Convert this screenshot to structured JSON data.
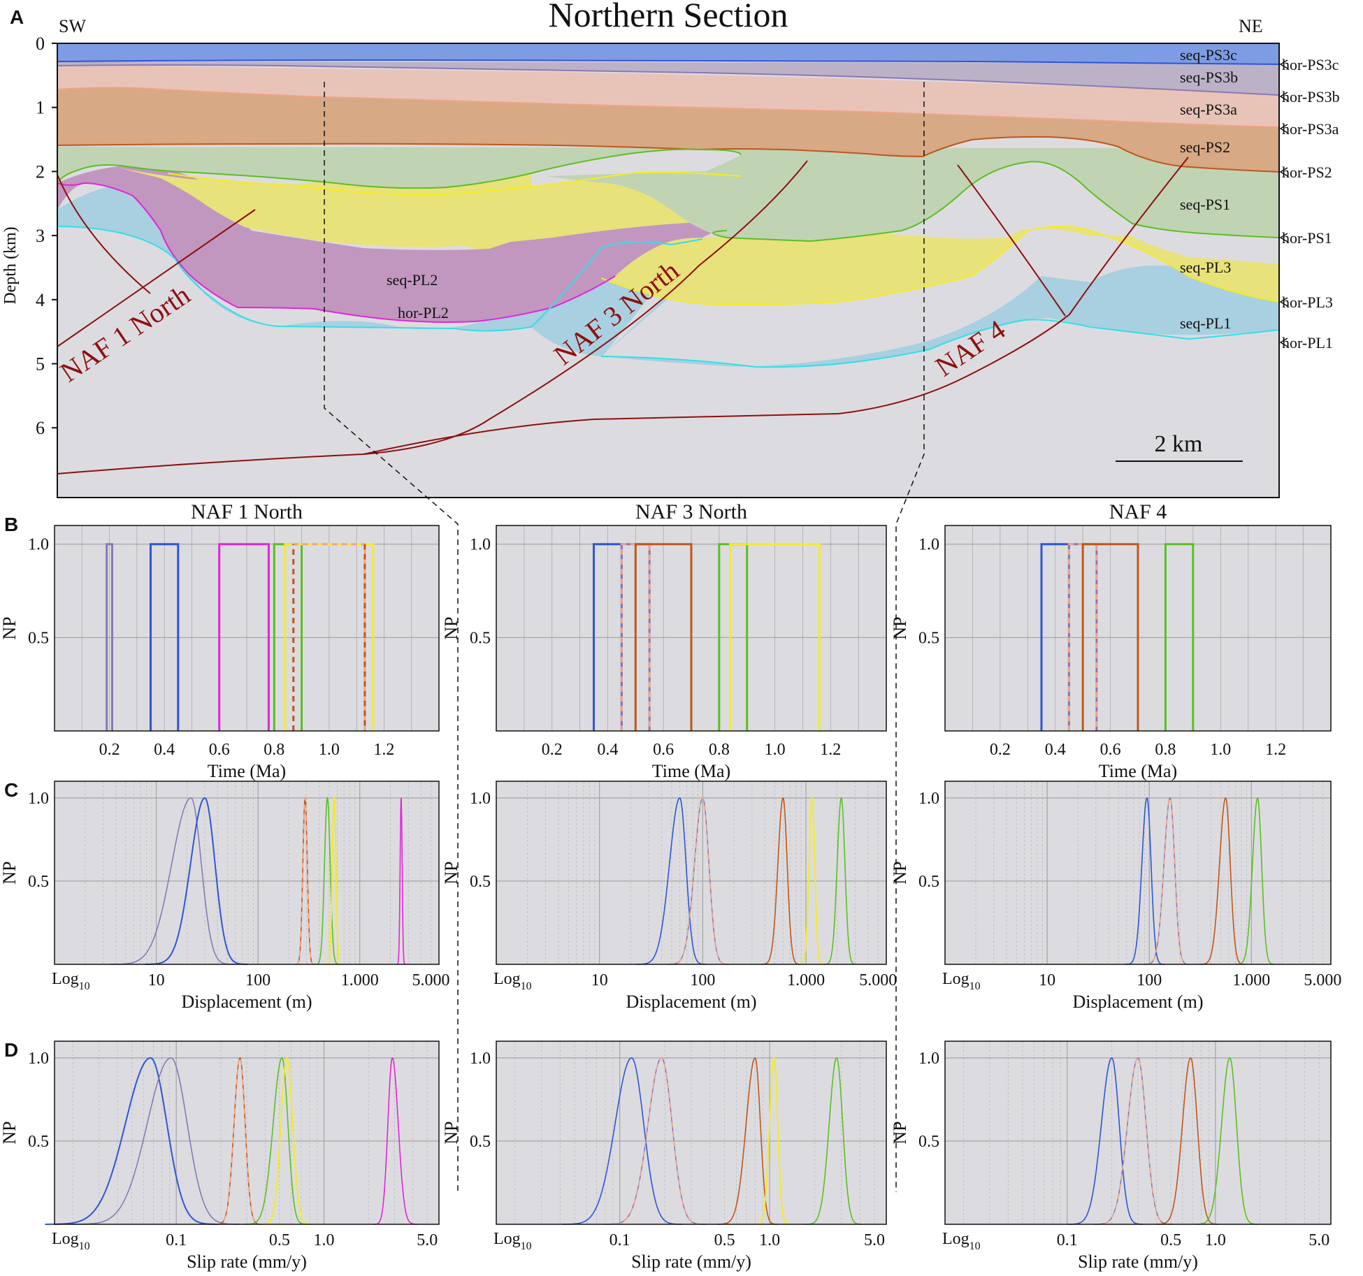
{
  "panel_letters": [
    "A",
    "B",
    "C",
    "D"
  ],
  "section": {
    "title": "Northern Section",
    "left_dir": "SW",
    "right_dir": "NE",
    "ylabel": "Depth (km)",
    "depth_ticks": [
      "0",
      "1",
      "2",
      "3",
      "4",
      "5",
      "6"
    ],
    "scale_label": "2 km",
    "fault_labels": [
      "NAF 1 North",
      "NAF 3 North",
      "NAF 4"
    ],
    "inner_labels": [
      "seq-PL2",
      "hor-PL2"
    ],
    "sequence_labels": [
      "seq-PS3c",
      "seq-PS3b",
      "seq-PS3a",
      "seq-PS2",
      "seq-PS1",
      "seq-PL3",
      "seq-PL1"
    ],
    "horizon_labels": [
      "hor-PS3c",
      "hor-PS3b",
      "hor-PS3a",
      "hor-PS2",
      "hor-PS1",
      "hor-PL3",
      "hor-PL1"
    ]
  },
  "colors": {
    "PS3c": "#2e55d6",
    "PS3b": "#8a78b4",
    "PS3a": "#f0a487",
    "PS2": "#c0561a",
    "PS1": "#5bbf1f",
    "PL3": "#f4ec22",
    "PL2": "#e424d8",
    "PL1": "#2fe0e8",
    "fault": "#8e0f0f",
    "panel_bg": "#dcdce0"
  },
  "chart_data": [
    {
      "type": "line",
      "panel": "B",
      "title": "NAF 1 North",
      "xlabel": "Time (Ma)",
      "ylabel": "NP",
      "xlim": [
        0,
        1.4
      ],
      "ylim": [
        0,
        1.1
      ],
      "x_ticks": [
        "0.2",
        "0.4",
        "0.6",
        "0.8",
        "1.0",
        "1.2"
      ],
      "y_ticks": [
        "0.5",
        "1.0"
      ],
      "series": [
        {
          "name": "PS3b",
          "color": "#8a78b4",
          "window": [
            0.19,
            0.21
          ]
        },
        {
          "name": "PS3c",
          "color": "#2e55d6",
          "window": [
            0.35,
            0.45
          ]
        },
        {
          "name": "PL2",
          "color": "#e424d8",
          "window": [
            0.6,
            0.78
          ]
        },
        {
          "name": "PS1",
          "color": "#5bbf1f",
          "window": [
            0.8,
            0.9
          ]
        },
        {
          "name": "PL3",
          "color": "#f4ec22",
          "window": [
            0.84,
            1.16
          ]
        },
        {
          "name": "PS3a",
          "color": "#f0a487",
          "window": [
            0.87,
            1.13
          ],
          "dashed": true
        },
        {
          "name": "PS2",
          "color": "#c0561a",
          "window": [
            0.87,
            1.13
          ],
          "dashed": true,
          "verticals_only": true
        }
      ]
    },
    {
      "type": "line",
      "panel": "B",
      "title": "NAF 3 North",
      "xlabel": "Time (Ma)",
      "ylabel": "NP",
      "xlim": [
        0,
        1.4
      ],
      "ylim": [
        0,
        1.1
      ],
      "x_ticks": [
        "0.2",
        "0.4",
        "0.6",
        "0.8",
        "1.0",
        "1.2"
      ],
      "y_ticks": [
        "0.5",
        "1.0"
      ],
      "series": [
        {
          "name": "PS3c",
          "color": "#2e55d6",
          "window": [
            0.35,
            0.45
          ]
        },
        {
          "name": "PS3b",
          "color": "#8a78b4",
          "window": [
            0.45,
            0.55
          ]
        },
        {
          "name": "PS3a",
          "color": "#f0a487",
          "window": [
            0.45,
            0.55
          ],
          "dashed": true
        },
        {
          "name": "PS2",
          "color": "#c0561a",
          "window": [
            0.5,
            0.7
          ]
        },
        {
          "name": "PS1",
          "color": "#5bbf1f",
          "window": [
            0.8,
            0.9
          ]
        },
        {
          "name": "PL3",
          "color": "#f4ec22",
          "window": [
            0.84,
            1.16
          ]
        }
      ]
    },
    {
      "type": "line",
      "panel": "B",
      "title": "NAF 4",
      "xlabel": "Time (Ma)",
      "ylabel": "NP",
      "xlim": [
        0,
        1.4
      ],
      "ylim": [
        0,
        1.1
      ],
      "x_ticks": [
        "0.2",
        "0.4",
        "0.6",
        "0.8",
        "1.0",
        "1.2"
      ],
      "y_ticks": [
        "0.5",
        "1.0"
      ],
      "series": [
        {
          "name": "PS3c",
          "color": "#2e55d6",
          "window": [
            0.35,
            0.45
          ]
        },
        {
          "name": "PS3b",
          "color": "#8a78b4",
          "window": [
            0.45,
            0.55
          ]
        },
        {
          "name": "PS3a",
          "color": "#f0a487",
          "window": [
            0.45,
            0.55
          ],
          "dashed": true
        },
        {
          "name": "PS2",
          "color": "#c0561a",
          "window": [
            0.5,
            0.7
          ]
        },
        {
          "name": "PS1",
          "color": "#5bbf1f",
          "window": [
            0.8,
            0.9
          ]
        }
      ]
    },
    {
      "type": "line",
      "panel": "C",
      "xlabel": "Displacement (m)",
      "ylabel": "NP",
      "log_label": "Log",
      "log_sub": "10",
      "xlim": [
        1,
        6000
      ],
      "ylim": [
        0,
        1.1
      ],
      "x_ticks": [
        {
          "v": 10,
          "label": "10"
        },
        {
          "v": 100,
          "label": "100"
        },
        {
          "v": 1000,
          "label": "1.000"
        },
        {
          "v": 5000,
          "label": "5.000"
        }
      ],
      "y_ticks": [
        "0.5",
        "1.0"
      ],
      "series": [
        {
          "name": "PS3b",
          "color": "#8a78b4",
          "peak": 22,
          "sigma_l": 0.19,
          "sigma_r": 0.1
        },
        {
          "name": "PS3c",
          "color": "#2e55d6",
          "peak": 30,
          "sigma_l": 0.14,
          "sigma_r": 0.1,
          "width": 2
        },
        {
          "name": "PS2",
          "color": "#c0561a",
          "peak": 290,
          "sigma_l": 0.022,
          "sigma_r": 0.022
        },
        {
          "name": "PS3a",
          "color": "#f0a487",
          "peak": 290,
          "sigma_l": 0.022,
          "sigma_r": 0.022,
          "dashed": true
        },
        {
          "name": "PS1",
          "color": "#5bbf1f",
          "peak": 480,
          "sigma_l": 0.028,
          "sigma_r": 0.028
        },
        {
          "name": "PL3",
          "color": "#f4ec22",
          "peak": 560,
          "sigma_l": 0.018,
          "sigma_r": 0.018,
          "width": 2
        },
        {
          "name": "PL2",
          "color": "#e424d8",
          "peak": 2550,
          "sigma_l": 0.01,
          "sigma_r": 0.01
        }
      ]
    },
    {
      "type": "line",
      "panel": "C",
      "xlabel": "Displacement (m)",
      "ylabel": "NP",
      "log_label": "Log",
      "log_sub": "10",
      "xlim": [
        1,
        6000
      ],
      "ylim": [
        0,
        1.1
      ],
      "x_ticks": [
        {
          "v": 10,
          "label": "10"
        },
        {
          "v": 100,
          "label": "100"
        },
        {
          "v": 1000,
          "label": "1.000"
        },
        {
          "v": 5000,
          "label": "5.000"
        }
      ],
      "y_ticks": [
        "0.5",
        "1.0"
      ],
      "series": [
        {
          "name": "PS3c",
          "color": "#2e55d6",
          "peak": 60,
          "sigma_l": 0.1,
          "sigma_r": 0.06
        },
        {
          "name": "PS3b",
          "color": "#8a78b4",
          "peak": 100,
          "sigma_l": 0.08,
          "sigma_r": 0.06
        },
        {
          "name": "PS3a",
          "color": "#f0a487",
          "peak": 100,
          "sigma_l": 0.08,
          "sigma_r": 0.06,
          "dashed": true
        },
        {
          "name": "PS2",
          "color": "#c0561a",
          "peak": 600,
          "sigma_l": 0.05,
          "sigma_r": 0.04
        },
        {
          "name": "PL3",
          "color": "#f4ec22",
          "peak": 1150,
          "sigma_l": 0.03,
          "sigma_r": 0.025,
          "width": 2
        },
        {
          "name": "PS1",
          "color": "#5bbf1f",
          "peak": 2200,
          "sigma_l": 0.04,
          "sigma_r": 0.035
        }
      ]
    },
    {
      "type": "line",
      "panel": "C",
      "xlabel": "Displacement (m)",
      "ylabel": "NP",
      "log_label": "Log",
      "log_sub": "10",
      "xlim": [
        1,
        6000
      ],
      "ylim": [
        0,
        1.1
      ],
      "x_ticks": [
        {
          "v": 10,
          "label": "10"
        },
        {
          "v": 100,
          "label": "100"
        },
        {
          "v": 1000,
          "label": "1.000"
        },
        {
          "v": 5000,
          "label": "5.000"
        }
      ],
      "y_ticks": [
        "0.5",
        "1.0"
      ],
      "series": [
        {
          "name": "PS3c",
          "color": "#2e55d6",
          "peak": 95,
          "sigma_l": 0.05,
          "sigma_r": 0.04
        },
        {
          "name": "PS3b",
          "color": "#8a78b4",
          "peak": 160,
          "sigma_l": 0.06,
          "sigma_r": 0.045
        },
        {
          "name": "PS3a",
          "color": "#f0a487",
          "peak": 160,
          "sigma_l": 0.06,
          "sigma_r": 0.045,
          "dashed": true
        },
        {
          "name": "PS2",
          "color": "#c0561a",
          "peak": 560,
          "sigma_l": 0.06,
          "sigma_r": 0.045
        },
        {
          "name": "PS1",
          "color": "#5bbf1f",
          "peak": 1150,
          "sigma_l": 0.05,
          "sigma_r": 0.04
        }
      ]
    },
    {
      "type": "line",
      "panel": "D",
      "xlabel": "Slip rate (mm/y)",
      "ylabel": "NP",
      "log_label": "Log",
      "log_sub": "10",
      "xlim": [
        0.015,
        6
      ],
      "ylim": [
        0,
        1.1
      ],
      "x_ticks": [
        {
          "v": 0.1,
          "label": "0.1"
        },
        {
          "v": 0.5,
          "label": "0.5"
        },
        {
          "v": 1,
          "label": "1.0"
        },
        {
          "v": 5,
          "label": "5.0"
        }
      ],
      "y_ticks": [
        "0.5",
        "1.0"
      ],
      "series": [
        {
          "name": "PS3c",
          "color": "#2e55d6",
          "peak": 0.067,
          "sigma_l": 0.17,
          "sigma_r": 0.11,
          "width": 2
        },
        {
          "name": "PS3b",
          "color": "#8a78b4",
          "peak": 0.092,
          "sigma_l": 0.16,
          "sigma_r": 0.11
        },
        {
          "name": "PS2",
          "color": "#c0561a",
          "peak": 0.27,
          "sigma_l": 0.04,
          "sigma_r": 0.035
        },
        {
          "name": "PS3a",
          "color": "#f0a487",
          "peak": 0.27,
          "sigma_l": 0.04,
          "sigma_r": 0.035,
          "dashed": true
        },
        {
          "name": "PS1",
          "color": "#5bbf1f",
          "peak": 0.52,
          "sigma_l": 0.06,
          "sigma_r": 0.04
        },
        {
          "name": "PL3",
          "color": "#f4ec22",
          "peak": 0.56,
          "sigma_l": 0.04,
          "sigma_r": 0.04,
          "width": 2
        },
        {
          "name": "PL2",
          "color": "#e424d8",
          "peak": 2.9,
          "sigma_l": 0.03,
          "sigma_r": 0.04
        }
      ]
    },
    {
      "type": "line",
      "panel": "D",
      "xlabel": "Slip rate (mm/y)",
      "ylabel": "NP",
      "log_label": "Log",
      "log_sub": "10",
      "xlim": [
        0.015,
        6
      ],
      "ylim": [
        0,
        1.1
      ],
      "x_ticks": [
        {
          "v": 0.1,
          "label": "0.1"
        },
        {
          "v": 0.5,
          "label": "0.5"
        },
        {
          "v": 1,
          "label": "1.0"
        },
        {
          "v": 5,
          "label": "5.0"
        }
      ],
      "y_ticks": [
        "0.5",
        "1.0"
      ],
      "series": [
        {
          "name": "PS3c",
          "color": "#2e55d6",
          "peak": 0.12,
          "sigma_l": 0.11,
          "sigma_r": 0.08
        },
        {
          "name": "PS3b",
          "color": "#8a78b4",
          "peak": 0.19,
          "sigma_l": 0.09,
          "sigma_r": 0.07
        },
        {
          "name": "PS3a",
          "color": "#f0a487",
          "peak": 0.19,
          "sigma_l": 0.09,
          "sigma_r": 0.07,
          "dashed": true
        },
        {
          "name": "PS2",
          "color": "#c0561a",
          "peak": 0.8,
          "sigma_l": 0.06,
          "sigma_r": 0.035
        },
        {
          "name": "PL3",
          "color": "#f4ec22",
          "peak": 1.07,
          "sigma_l": 0.03,
          "sigma_r": 0.025,
          "width": 2
        },
        {
          "name": "PS1",
          "color": "#5bbf1f",
          "peak": 2.8,
          "sigma_l": 0.05,
          "sigma_r": 0.04
        }
      ]
    },
    {
      "type": "line",
      "panel": "D",
      "xlabel": "Slip rate (mm/y)",
      "ylabel": "NP",
      "log_label": "Log",
      "log_sub": "10",
      "xlim": [
        0.015,
        6
      ],
      "ylim": [
        0,
        1.1
      ],
      "x_ticks": [
        {
          "v": 0.1,
          "label": "0.1"
        },
        {
          "v": 0.5,
          "label": "0.5"
        },
        {
          "v": 1,
          "label": "1.0"
        },
        {
          "v": 5,
          "label": "5.0"
        }
      ],
      "y_ticks": [
        "0.5",
        "1.0"
      ],
      "series": [
        {
          "name": "PS3c",
          "color": "#2e55d6",
          "peak": 0.2,
          "sigma_l": 0.07,
          "sigma_r": 0.05
        },
        {
          "name": "PS3b",
          "color": "#8a78b4",
          "peak": 0.3,
          "sigma_l": 0.07,
          "sigma_r": 0.055
        },
        {
          "name": "PS3a",
          "color": "#f0a487",
          "peak": 0.3,
          "sigma_l": 0.07,
          "sigma_r": 0.055,
          "dashed": true
        },
        {
          "name": "PS2",
          "color": "#c0561a",
          "peak": 0.68,
          "sigma_l": 0.055,
          "sigma_r": 0.045
        },
        {
          "name": "PS1",
          "color": "#5bbf1f",
          "peak": 1.25,
          "sigma_l": 0.055,
          "sigma_r": 0.045
        }
      ]
    }
  ]
}
